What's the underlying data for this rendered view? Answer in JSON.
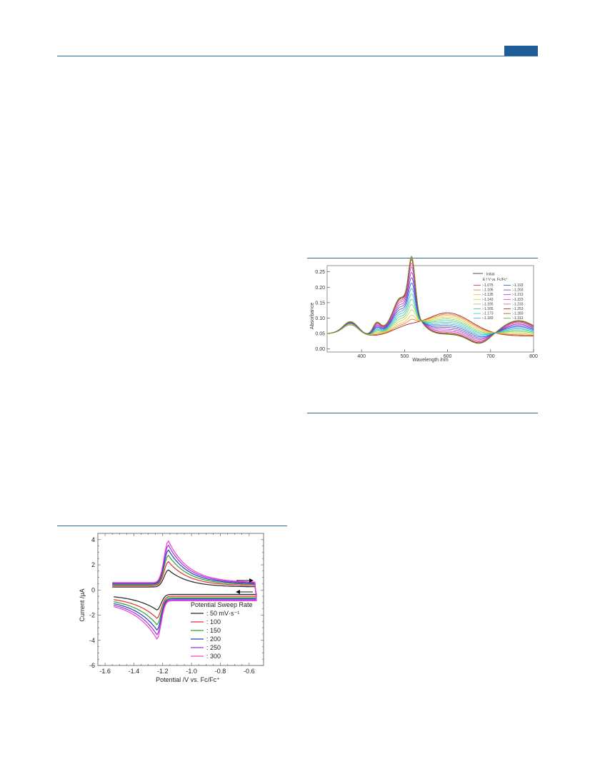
{
  "page": {
    "header_tab_color": "#1f5d9a",
    "rule_color": "#2c6aa3"
  },
  "chart_data": [
    {
      "type": "line",
      "panel": "absorption-spectra",
      "xlabel": "Wavelength /nm",
      "ylabel": "Absorbance",
      "xlim": [
        320,
        800
      ],
      "ylim": [
        -0.01,
        0.27
      ],
      "xticks": [
        400,
        500,
        600,
        700,
        800
      ],
      "yticks": [
        0.0,
        0.05,
        0.1,
        0.15,
        0.2,
        0.25
      ],
      "ytick_labels": [
        "0.00",
        "0.05",
        "0.10",
        "0.15",
        "0.20",
        "0.25"
      ],
      "legend_title": "E / V vs. Fc/Fc⁺",
      "legend_placement": "top-right",
      "initial_label": ": Initial",
      "series": [
        {
          "name": "-1.075",
          "color": "#c83232"
        },
        {
          "name": "-1.105",
          "color": "#e8781e"
        },
        {
          "name": "-1.135",
          "color": "#f0b43c"
        },
        {
          "name": "-1.143",
          "color": "#c8d23c"
        },
        {
          "name": "-1.155",
          "color": "#78d25a"
        },
        {
          "name": "-1.165",
          "color": "#3cc878"
        },
        {
          "name": "-1.173",
          "color": "#28c8c8"
        },
        {
          "name": "-1.183",
          "color": "#3c96e6"
        },
        {
          "name": "-1.193",
          "color": "#2850c8"
        },
        {
          "name": "-1.203",
          "color": "#5a3cc8"
        },
        {
          "name": "-1.213",
          "color": "#9632c8"
        },
        {
          "name": "-1.223",
          "color": "#c832c8"
        },
        {
          "name": "-1.233",
          "color": "#e64ba0"
        },
        {
          "name": "-1.253",
          "color": "#a01e1e"
        },
        {
          "name": "-1.283",
          "color": "#8c5a1e"
        },
        {
          "name": "-1.313",
          "color": "#64a028"
        }
      ]
    },
    {
      "type": "line",
      "panel": "cyclic-voltammograms",
      "xlabel": "Potential /V vs. Fc/Fc⁺",
      "ylabel": "Current /μA",
      "xlim": [
        -1.65,
        -0.5
      ],
      "ylim": [
        -6,
        4.5
      ],
      "xticks": [
        -1.6,
        -1.4,
        -1.2,
        -1.0,
        -0.8,
        -0.6
      ],
      "xtick_labels": [
        "-1.6",
        "-1.4",
        "-1.2",
        "-1.0",
        "-0.8",
        "-0.6"
      ],
      "yticks": [
        -6,
        -4,
        -2,
        0,
        2,
        4
      ],
      "ytick_labels": [
        "-6",
        "-4",
        "-2",
        "0",
        "2",
        "4"
      ],
      "legend_title": "Potential Sweep Rate",
      "legend_placement": "bottom-right",
      "series": [
        {
          "name": "50 mV·s⁻¹",
          "value": 50,
          "color": "#222222"
        },
        {
          "name": "100",
          "value": 100,
          "color": "#e03030"
        },
        {
          "name": "150",
          "value": 150,
          "color": "#30a030"
        },
        {
          "name": "200",
          "value": 200,
          "color": "#2040c0"
        },
        {
          "name": "250",
          "value": 250,
          "color": "#a030e0"
        },
        {
          "name": "300",
          "value": 300,
          "color": "#f040d0"
        }
      ]
    }
  ]
}
